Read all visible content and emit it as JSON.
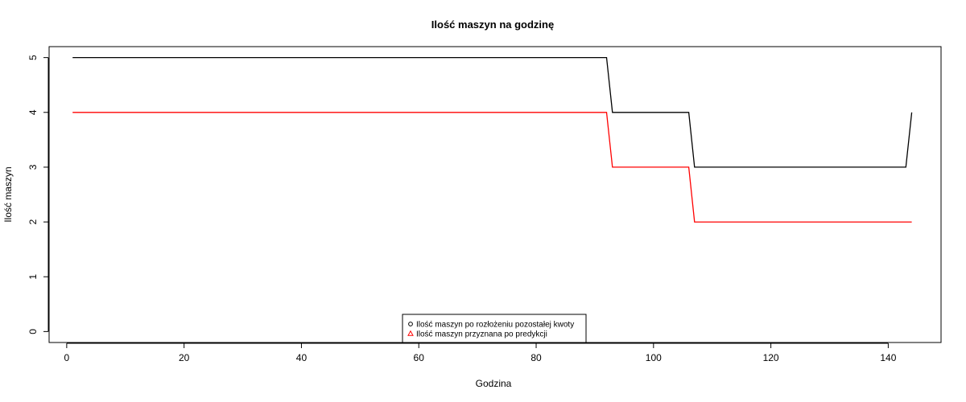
{
  "chart_data": {
    "type": "line",
    "title": "Ilość maszyn na godzinę",
    "xlabel": "Godzina",
    "ylabel": "Ilość maszyn",
    "xlim": [
      -3,
      149
    ],
    "ylim": [
      -0.2,
      5.2
    ],
    "x_ticks": [
      0,
      20,
      40,
      60,
      80,
      100,
      120,
      140
    ],
    "y_ticks": [
      0,
      1,
      2,
      3,
      4,
      5
    ],
    "grid": false,
    "legend_position": "bottom-center",
    "series": [
      {
        "name": "Ilość maszyn po rozłożeniu pozostałej kwoty",
        "color": "#000000",
        "legend_symbol": "circle",
        "points": [
          [
            1,
            5
          ],
          [
            92,
            5
          ],
          [
            93,
            4
          ],
          [
            106,
            4
          ],
          [
            107,
            3
          ],
          [
            143,
            3
          ],
          [
            144,
            4
          ]
        ]
      },
      {
        "name": "Ilość maszyn przyznana po predykcji",
        "color": "#ff0000",
        "legend_symbol": "triangle",
        "points": [
          [
            1,
            4
          ],
          [
            92,
            4
          ],
          [
            93,
            3
          ],
          [
            106,
            3
          ],
          [
            107,
            2
          ],
          [
            144,
            2
          ]
        ]
      }
    ]
  }
}
